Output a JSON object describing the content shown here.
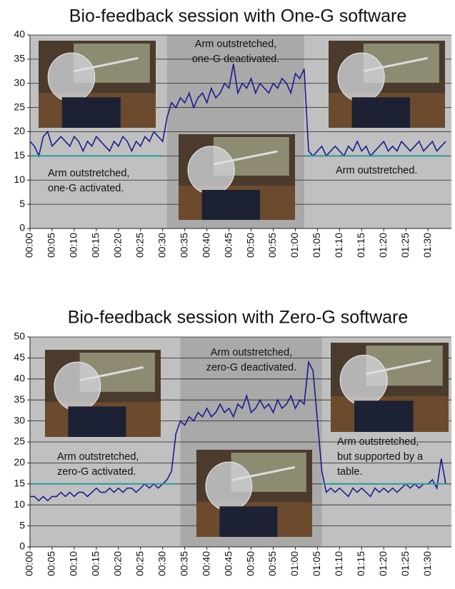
{
  "chart_data": [
    {
      "type": "line",
      "title": "Bio-feedback session with One-G software",
      "categories": [
        "00:00",
        null,
        null,
        null,
        null,
        "00:05",
        null,
        null,
        null,
        null,
        "00:10",
        null,
        null,
        null,
        null,
        "00:15",
        null,
        null,
        null,
        null,
        "00:20",
        null,
        null,
        null,
        null,
        "00:25",
        null,
        null,
        null,
        null,
        "00:30",
        null,
        null,
        null,
        null,
        "00:35",
        null,
        null,
        null,
        null,
        "00:40",
        null,
        null,
        null,
        null,
        "00:45",
        null,
        null,
        null,
        null,
        "00:50",
        null,
        null,
        null,
        null,
        "00:55",
        null,
        null,
        null,
        null,
        "01:00",
        null,
        null,
        null,
        null,
        "01:05",
        null,
        null,
        null,
        null,
        "01:10",
        null,
        null,
        null,
        null,
        "01:15",
        null,
        null,
        null,
        null,
        "01:20",
        null,
        null,
        null,
        null,
        "01:25",
        null,
        null,
        null,
        null,
        "01:30",
        null,
        null,
        null,
        null
      ],
      "series": [
        {
          "color": "#1b1b8f",
          "values": [
            18,
            17,
            15,
            19,
            20,
            17,
            18,
            19,
            18,
            17,
            19,
            18,
            16,
            18,
            17,
            19,
            18,
            17,
            16,
            18,
            17,
            19,
            18,
            16,
            18,
            17,
            19,
            18,
            20,
            19,
            18,
            23,
            26,
            25,
            27,
            26,
            28,
            25,
            27,
            28,
            26,
            29,
            27,
            28,
            30,
            29,
            34,
            28,
            30,
            29,
            31,
            28,
            30,
            29,
            28,
            30,
            29,
            31,
            30,
            28,
            32,
            31,
            33,
            16,
            15,
            16,
            17,
            15,
            16,
            17,
            16,
            15,
            17,
            16,
            18,
            16,
            17,
            15,
            16,
            17,
            18,
            16,
            17,
            16,
            18,
            17,
            16,
            17,
            18,
            16,
            17,
            18,
            16,
            17,
            18
          ]
        },
        {
          "color": "#2a9a9a",
          "values": [
            15,
            15,
            15,
            15,
            15,
            15,
            15,
            15,
            15,
            15,
            15,
            15,
            15,
            15,
            15,
            15,
            15,
            15,
            15,
            15,
            15,
            15,
            15,
            15,
            15,
            15,
            15,
            15,
            15,
            15,
            15,
            null,
            null,
            null,
            null,
            null,
            null,
            null,
            null,
            null,
            null,
            null,
            null,
            null,
            null,
            null,
            null,
            null,
            null,
            null,
            null,
            null,
            null,
            null,
            null,
            null,
            null,
            null,
            null,
            null,
            null,
            null,
            15,
            15,
            15,
            15,
            15,
            15,
            15,
            15,
            15,
            15,
            15,
            15,
            15,
            15,
            15,
            15,
            15,
            15,
            15,
            15,
            15,
            15,
            15,
            15,
            15,
            15,
            15,
            15,
            15,
            15,
            15,
            15,
            15
          ]
        }
      ],
      "ylim": [
        0,
        40
      ],
      "yticks": [
        0,
        5,
        10,
        15,
        20,
        25,
        30,
        35,
        40
      ],
      "grid": true,
      "annotations": [
        [
          "Arm outstretched,",
          "one-G deactivated."
        ],
        [
          "Arm outstretched,",
          "one-G activated."
        ],
        [
          "Arm outstretched."
        ]
      ]
    },
    {
      "type": "line",
      "title": "Bio-feedback session with Zero-G software",
      "categories": [
        "00:00",
        null,
        null,
        null,
        null,
        "00:05",
        null,
        null,
        null,
        null,
        "00:10",
        null,
        null,
        null,
        null,
        "00:15",
        null,
        null,
        null,
        null,
        "00:20",
        null,
        null,
        null,
        null,
        "00:25",
        null,
        null,
        null,
        null,
        "00:30",
        null,
        null,
        null,
        null,
        "00:35",
        null,
        null,
        null,
        null,
        "00:40",
        null,
        null,
        null,
        null,
        "00:45",
        null,
        null,
        null,
        null,
        "00:50",
        null,
        null,
        null,
        null,
        "00:55",
        null,
        null,
        null,
        null,
        "01:00",
        null,
        null,
        null,
        null,
        "01:05",
        null,
        null,
        null,
        null,
        "01:10",
        null,
        null,
        null,
        null,
        "01:15",
        null,
        null,
        null,
        null,
        "01:20",
        null,
        null,
        null,
        null,
        "01:25",
        null,
        null,
        null,
        null,
        "01:30",
        null,
        null,
        null,
        null
      ],
      "series": [
        {
          "color": "#1b1b8f",
          "values": [
            12,
            12,
            11,
            12,
            11,
            12,
            12,
            13,
            12,
            13,
            12,
            13,
            13,
            12,
            13,
            14,
            13,
            13,
            14,
            13,
            14,
            13,
            14,
            14,
            13,
            14,
            15,
            14,
            15,
            14,
            15,
            16,
            18,
            27,
            30,
            29,
            31,
            30,
            32,
            31,
            33,
            31,
            32,
            34,
            32,
            33,
            31,
            34,
            33,
            36,
            32,
            33,
            35,
            33,
            34,
            32,
            35,
            33,
            34,
            36,
            33,
            35,
            34,
            44,
            42,
            30,
            18,
            13,
            14,
            13,
            14,
            13,
            12,
            14,
            13,
            14,
            13,
            12,
            14,
            13,
            14,
            13,
            14,
            13,
            14,
            15,
            14,
            15,
            14,
            15,
            15,
            16,
            14,
            21,
            15
          ]
        },
        {
          "color": "#2a9a9a",
          "values": [
            15,
            15,
            15,
            15,
            15,
            15,
            15,
            15,
            15,
            15,
            15,
            15,
            15,
            15,
            15,
            15,
            15,
            15,
            15,
            15,
            15,
            15,
            15,
            15,
            15,
            15,
            15,
            15,
            15,
            15,
            15,
            15,
            15,
            15,
            null,
            null,
            null,
            null,
            null,
            null,
            null,
            null,
            null,
            null,
            null,
            null,
            null,
            null,
            null,
            null,
            null,
            null,
            null,
            null,
            null,
            null,
            null,
            null,
            null,
            null,
            null,
            null,
            null,
            null,
            null,
            null,
            15,
            15,
            15,
            15,
            15,
            15,
            15,
            15,
            15,
            15,
            15,
            15,
            15,
            15,
            15,
            15,
            15,
            15,
            15,
            15,
            15,
            15,
            15,
            15,
            15,
            15,
            15,
            15,
            15
          ]
        }
      ],
      "ylim": [
        0,
        50
      ],
      "yticks": [
        0,
        5,
        10,
        15,
        20,
        25,
        30,
        35,
        40,
        45,
        50
      ],
      "grid": true,
      "annotations": [
        [
          "Arm outstretched,",
          "zero-G deactivated."
        ],
        [
          "Arm outstretched,",
          "zero-G activated."
        ],
        [
          "Arm outstretched,",
          "but supported by a",
          "table."
        ]
      ]
    }
  ]
}
